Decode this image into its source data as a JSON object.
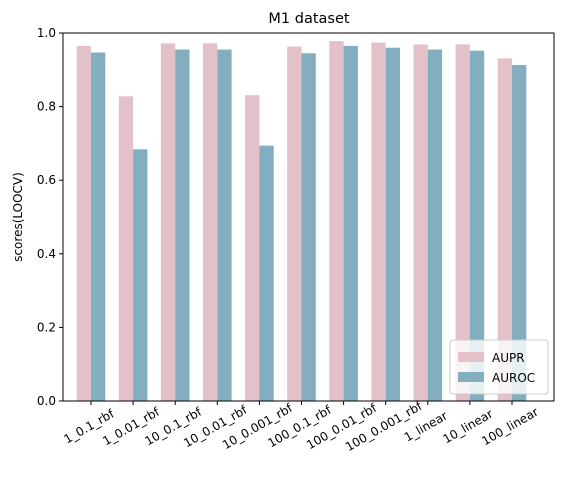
{
  "chart_data": {
    "type": "bar",
    "title": "M1 dataset",
    "xlabel": "",
    "ylabel": "scores(LOOCV)",
    "ylim": [
      0,
      1.0
    ],
    "yticks": [
      "0.0",
      "0.2",
      "0.4",
      "0.6",
      "0.8",
      "1.0"
    ],
    "grid": false,
    "legend_position": "lower-right",
    "categories": [
      "1_0.1_rbf",
      "1_0.01_rbf",
      "10_0.1_rbf",
      "10_0.01_rbf",
      "10_0.001_rbf",
      "100_0.1_rbf",
      "100_0.01_rbf",
      "100_0.001_rbf",
      "1_linear",
      "10_linear",
      "100_linear"
    ],
    "series": [
      {
        "name": "AUPR",
        "color": "#e3c1c8",
        "values": [
          0.965,
          0.828,
          0.972,
          0.972,
          0.831,
          0.963,
          0.978,
          0.974,
          0.969,
          0.969,
          0.931
        ]
      },
      {
        "name": "AUROC",
        "color": "#83aebf",
        "values": [
          0.947,
          0.684,
          0.955,
          0.955,
          0.694,
          0.945,
          0.965,
          0.96,
          0.955,
          0.952,
          0.913
        ]
      }
    ]
  }
}
